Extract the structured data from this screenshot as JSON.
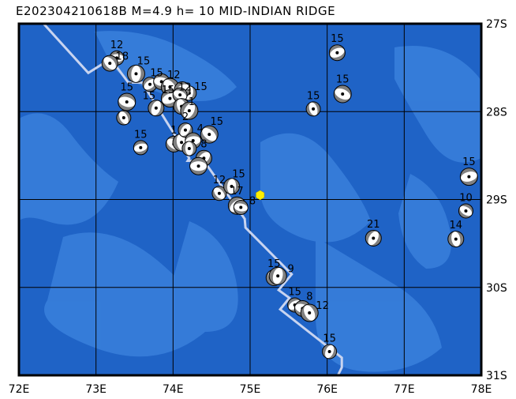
{
  "title": "E202304210618B M=4.9 h= 10 MID-INDIAN RIDGE",
  "map": {
    "lon_range": [
      72,
      78
    ],
    "lat_range_south": [
      27,
      31
    ],
    "lon_ticks": [
      "72E",
      "73E",
      "74E",
      "75E",
      "76E",
      "77E",
      "78E"
    ],
    "lat_ticks": [
      "27S",
      "28S",
      "29S",
      "30S",
      "31S"
    ],
    "colors": {
      "ocean": "#1f63c6",
      "shallow": "#3a80dc",
      "ridge": "#c8d4f0",
      "grid": "#000000",
      "epicenter": "#ffee00",
      "compression": "#808080",
      "dilatation": "#ffffff"
    },
    "epicenter": {
      "lon": 75.13,
      "lat": 28.95
    },
    "ridge": [
      [
        72.32,
        27.0
      ],
      [
        72.9,
        27.56
      ],
      [
        73.19,
        27.4
      ],
      [
        73.42,
        27.67
      ],
      [
        73.6,
        27.67
      ],
      [
        74.21,
        28.53
      ],
      [
        74.19,
        28.56
      ],
      [
        74.4,
        28.56
      ],
      [
        74.93,
        29.22
      ],
      [
        74.94,
        29.32
      ],
      [
        75.54,
        29.85
      ],
      [
        75.37,
        30.03
      ],
      [
        75.51,
        30.12
      ],
      [
        75.39,
        30.25
      ],
      [
        76.19,
        30.8
      ],
      [
        76.19,
        30.91
      ],
      [
        76.14,
        31.0
      ]
    ],
    "events": [
      {
        "lon": 73.27,
        "lat": 27.39,
        "depth": "12"
      },
      {
        "lon": 73.18,
        "lat": 27.45,
        "depth": "18"
      },
      {
        "lon": 73.52,
        "lat": 27.57,
        "depth": "15"
      },
      {
        "lon": 73.7,
        "lat": 27.69,
        "depth": "15"
      },
      {
        "lon": 73.85,
        "lat": 27.66,
        "depth": "12"
      },
      {
        "lon": 73.96,
        "lat": 27.72,
        "depth": "12"
      },
      {
        "lon": 74.21,
        "lat": 27.79,
        "depth": "15"
      },
      {
        "lon": 74.12,
        "lat": 27.75,
        "depth": "15"
      },
      {
        "lon": 73.4,
        "lat": 27.89,
        "depth": "15"
      },
      {
        "lon": 73.36,
        "lat": 28.07,
        "depth": ""
      },
      {
        "lon": 73.78,
        "lat": 27.96,
        "depth": "15"
      },
      {
        "lon": 73.96,
        "lat": 27.85,
        "depth": ""
      },
      {
        "lon": 74.09,
        "lat": 27.81,
        "depth": "1"
      },
      {
        "lon": 74.11,
        "lat": 27.94,
        "depth": ""
      },
      {
        "lon": 74.21,
        "lat": 27.99,
        "depth": ""
      },
      {
        "lon": 73.58,
        "lat": 28.41,
        "depth": "15"
      },
      {
        "lon": 74.01,
        "lat": 28.37,
        "depth": "1"
      },
      {
        "lon": 74.11,
        "lat": 28.35,
        "depth": ""
      },
      {
        "lon": 74.16,
        "lat": 28.21,
        "depth": "2"
      },
      {
        "lon": 74.26,
        "lat": 28.33,
        "depth": "4"
      },
      {
        "lon": 74.47,
        "lat": 28.26,
        "depth": "15"
      },
      {
        "lon": 74.21,
        "lat": 28.42,
        "depth": ""
      },
      {
        "lon": 74.4,
        "lat": 28.53,
        "depth": "8"
      },
      {
        "lon": 74.33,
        "lat": 28.62,
        "depth": ""
      },
      {
        "lon": 74.6,
        "lat": 28.93,
        "depth": "12"
      },
      {
        "lon": 74.76,
        "lat": 28.85,
        "depth": "15"
      },
      {
        "lon": 74.83,
        "lat": 29.07,
        "depth": "17"
      },
      {
        "lon": 74.88,
        "lat": 29.09,
        "depth": "8"
      },
      {
        "lon": 75.31,
        "lat": 29.89,
        "depth": "15"
      },
      {
        "lon": 75.36,
        "lat": 29.87,
        "depth": "9"
      },
      {
        "lon": 75.58,
        "lat": 30.2,
        "depth": "15"
      },
      {
        "lon": 75.68,
        "lat": 30.24,
        "depth": "8"
      },
      {
        "lon": 75.77,
        "lat": 30.29,
        "depth": "12"
      },
      {
        "lon": 76.03,
        "lat": 30.73,
        "depth": "15"
      },
      {
        "lon": 76.13,
        "lat": 27.33,
        "depth": "15"
      },
      {
        "lon": 76.2,
        "lat": 27.8,
        "depth": "15"
      },
      {
        "lon": 75.82,
        "lat": 27.97,
        "depth": "15"
      },
      {
        "lon": 76.6,
        "lat": 29.44,
        "depth": "21"
      },
      {
        "lon": 77.84,
        "lat": 28.74,
        "depth": "15"
      },
      {
        "lon": 77.8,
        "lat": 29.13,
        "depth": "10"
      },
      {
        "lon": 77.67,
        "lat": 29.45,
        "depth": "14"
      }
    ]
  }
}
